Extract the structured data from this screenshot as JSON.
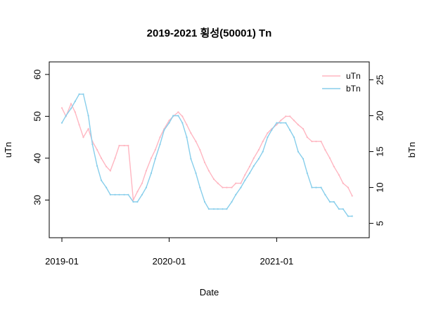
{
  "chart_data": {
    "type": "line",
    "title": "2019-2021 횡성(50001) Tn",
    "xlabel": "Date",
    "ylabel_left": "uTn",
    "ylabel_right": "bTn",
    "x_tick_labels": [
      "2019-01",
      "2020-01",
      "2021-01"
    ],
    "x_range": [
      "2019-01-01",
      "2021-09-30"
    ],
    "y_left_ticks": [
      30,
      40,
      50,
      60
    ],
    "y_left_range": [
      21,
      63
    ],
    "y_right_ticks": [
      5,
      10,
      15,
      20,
      25
    ],
    "y_right_range": [
      3,
      27.5
    ],
    "legend": {
      "position": "top-right",
      "entries": [
        "uTn",
        "bTn"
      ]
    },
    "series": [
      {
        "name": "uTn",
        "axis": "left",
        "color": "#FFB6C1",
        "points": [
          [
            "2019-01-01",
            52
          ],
          [
            "2019-01-15",
            50
          ],
          [
            "2019-02-01",
            53
          ],
          [
            "2019-02-15",
            51
          ],
          [
            "2019-03-01",
            48
          ],
          [
            "2019-03-15",
            45
          ],
          [
            "2019-04-01",
            47
          ],
          [
            "2019-04-15",
            44
          ],
          [
            "2019-05-01",
            42
          ],
          [
            "2019-05-15",
            40
          ],
          [
            "2019-06-01",
            38
          ],
          [
            "2019-06-15",
            37
          ],
          [
            "2019-07-01",
            40
          ],
          [
            "2019-07-15",
            43
          ],
          [
            "2019-08-01",
            43
          ],
          [
            "2019-08-15",
            43
          ],
          [
            "2019-09-01",
            30
          ],
          [
            "2019-09-15",
            32
          ],
          [
            "2019-10-01",
            34
          ],
          [
            "2019-10-15",
            37
          ],
          [
            "2019-11-01",
            40
          ],
          [
            "2019-11-15",
            42
          ],
          [
            "2019-12-01",
            45
          ],
          [
            "2019-12-15",
            47
          ],
          [
            "2020-01-01",
            49
          ],
          [
            "2020-01-15",
            50
          ],
          [
            "2020-02-01",
            51
          ],
          [
            "2020-02-15",
            50
          ],
          [
            "2020-03-01",
            48
          ],
          [
            "2020-03-15",
            46
          ],
          [
            "2020-04-01",
            44
          ],
          [
            "2020-04-15",
            42
          ],
          [
            "2020-05-01",
            39
          ],
          [
            "2020-05-15",
            37
          ],
          [
            "2020-06-01",
            35
          ],
          [
            "2020-06-15",
            34
          ],
          [
            "2020-07-01",
            33
          ],
          [
            "2020-07-15",
            33
          ],
          [
            "2020-08-01",
            33
          ],
          [
            "2020-08-15",
            34
          ],
          [
            "2020-09-01",
            34
          ],
          [
            "2020-09-15",
            36
          ],
          [
            "2020-10-01",
            38
          ],
          [
            "2020-10-15",
            40
          ],
          [
            "2020-11-01",
            42
          ],
          [
            "2020-11-15",
            44
          ],
          [
            "2020-12-01",
            46
          ],
          [
            "2020-12-15",
            47
          ],
          [
            "2021-01-01",
            48
          ],
          [
            "2021-01-15",
            49
          ],
          [
            "2021-02-01",
            50
          ],
          [
            "2021-02-15",
            50
          ],
          [
            "2021-03-01",
            49
          ],
          [
            "2021-03-15",
            48
          ],
          [
            "2021-04-01",
            47
          ],
          [
            "2021-04-15",
            45
          ],
          [
            "2021-05-01",
            44
          ],
          [
            "2021-05-15",
            44
          ],
          [
            "2021-06-01",
            44
          ],
          [
            "2021-06-15",
            42
          ],
          [
            "2021-07-01",
            40
          ],
          [
            "2021-07-15",
            38
          ],
          [
            "2021-08-01",
            36
          ],
          [
            "2021-08-15",
            34
          ],
          [
            "2021-09-01",
            33
          ],
          [
            "2021-09-15",
            31
          ]
        ]
      },
      {
        "name": "bTn",
        "axis": "right",
        "color": "#87CEEB",
        "points": [
          [
            "2019-01-01",
            19
          ],
          [
            "2019-01-15",
            20
          ],
          [
            "2019-02-01",
            21
          ],
          [
            "2019-02-15",
            22
          ],
          [
            "2019-03-01",
            23
          ],
          [
            "2019-03-15",
            23
          ],
          [
            "2019-04-01",
            20
          ],
          [
            "2019-04-15",
            16
          ],
          [
            "2019-05-01",
            13
          ],
          [
            "2019-05-15",
            11
          ],
          [
            "2019-06-01",
            10
          ],
          [
            "2019-06-15",
            9
          ],
          [
            "2019-07-01",
            9
          ],
          [
            "2019-07-15",
            9
          ],
          [
            "2019-08-01",
            9
          ],
          [
            "2019-08-15",
            9
          ],
          [
            "2019-09-01",
            8
          ],
          [
            "2019-09-15",
            8
          ],
          [
            "2019-10-01",
            9
          ],
          [
            "2019-10-15",
            10
          ],
          [
            "2019-11-01",
            12
          ],
          [
            "2019-11-15",
            14
          ],
          [
            "2019-12-01",
            16
          ],
          [
            "2019-12-15",
            18
          ],
          [
            "2020-01-01",
            19
          ],
          [
            "2020-01-15",
            20
          ],
          [
            "2020-02-01",
            20
          ],
          [
            "2020-02-15",
            19
          ],
          [
            "2020-03-01",
            17
          ],
          [
            "2020-03-15",
            14
          ],
          [
            "2020-04-01",
            12
          ],
          [
            "2020-04-15",
            10
          ],
          [
            "2020-05-01",
            8
          ],
          [
            "2020-05-15",
            7
          ],
          [
            "2020-06-01",
            7
          ],
          [
            "2020-06-15",
            7
          ],
          [
            "2020-07-01",
            7
          ],
          [
            "2020-07-15",
            7
          ],
          [
            "2020-08-01",
            8
          ],
          [
            "2020-08-15",
            9
          ],
          [
            "2020-09-01",
            10
          ],
          [
            "2020-09-15",
            11
          ],
          [
            "2020-10-01",
            12
          ],
          [
            "2020-10-15",
            13
          ],
          [
            "2020-11-01",
            14
          ],
          [
            "2020-11-15",
            15
          ],
          [
            "2020-12-01",
            17
          ],
          [
            "2020-12-15",
            18
          ],
          [
            "2021-01-01",
            19
          ],
          [
            "2021-01-15",
            19
          ],
          [
            "2021-02-01",
            19
          ],
          [
            "2021-02-15",
            18
          ],
          [
            "2021-03-01",
            17
          ],
          [
            "2021-03-15",
            15
          ],
          [
            "2021-04-01",
            14
          ],
          [
            "2021-04-15",
            12
          ],
          [
            "2021-05-01",
            10
          ],
          [
            "2021-05-15",
            10
          ],
          [
            "2021-06-01",
            10
          ],
          [
            "2021-06-15",
            9
          ],
          [
            "2021-07-01",
            8
          ],
          [
            "2021-07-15",
            8
          ],
          [
            "2021-08-01",
            7
          ],
          [
            "2021-08-15",
            7
          ],
          [
            "2021-09-01",
            6
          ],
          [
            "2021-09-15",
            6
          ]
        ]
      }
    ]
  }
}
